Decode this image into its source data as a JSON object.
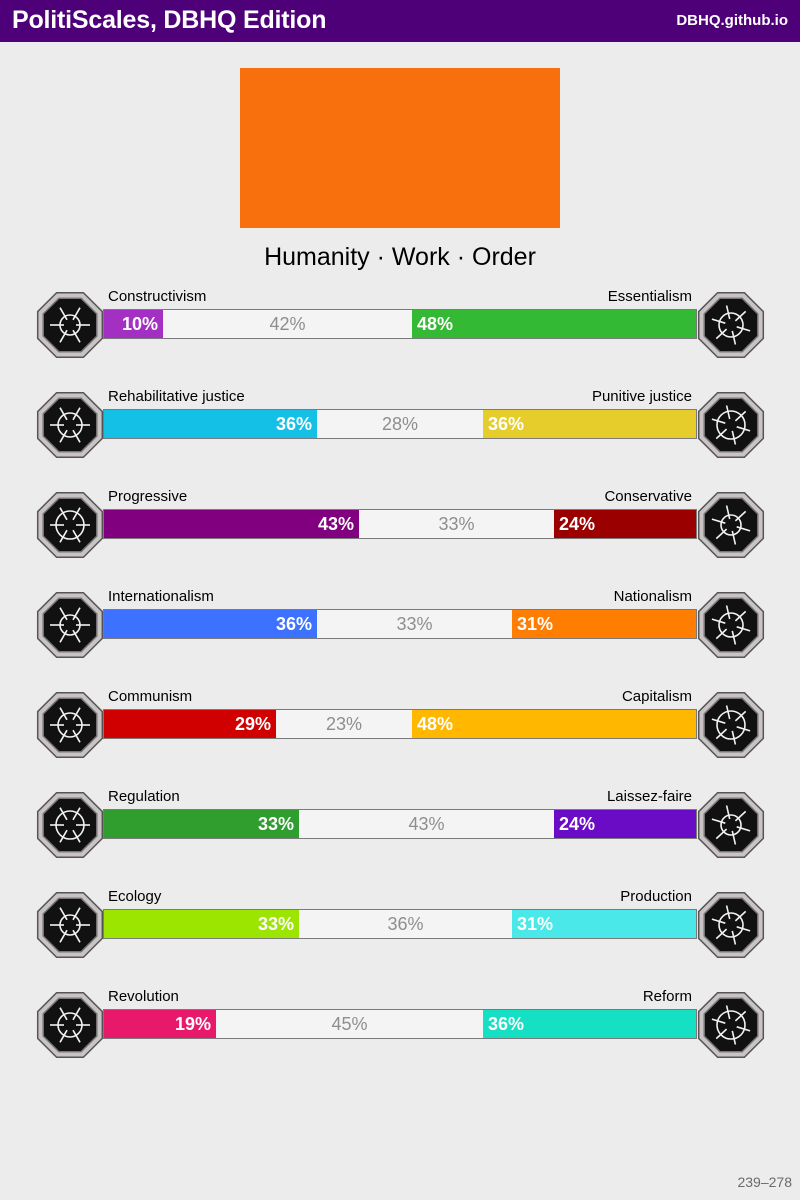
{
  "header": {
    "title": "PolitiScales, DBHQ Edition",
    "site": "DBHQ.github.io",
    "background": "#4e0079"
  },
  "flag": {
    "color": "#f8700d"
  },
  "summary": "Humanity · Work · Order",
  "axes": [
    {
      "left_label": "Constructivism",
      "right_label": "Essentialism",
      "left_pct": 10,
      "mid_pct": 42,
      "right_pct": 48,
      "left_text": "10%",
      "mid_text": "42%",
      "right_text": "48%",
      "left_color": "#a330c3",
      "right_color": "#33b933",
      "left_icon": "eye-icon",
      "right_icon": "flower-icon"
    },
    {
      "left_label": "Rehabilitative justice",
      "right_label": "Punitive justice",
      "left_pct": 36,
      "mid_pct": 28,
      "right_pct": 36,
      "left_text": "36%",
      "mid_text": "28%",
      "right_text": "36%",
      "left_color": "#14c0e6",
      "right_color": "#e6cd2b",
      "left_icon": "handshake-icon",
      "right_icon": "prison-bars-icon"
    },
    {
      "left_label": "Progressive",
      "right_label": "Conservative",
      "left_pct": 43,
      "mid_pct": 33,
      "right_pct": 24,
      "left_text": "43%",
      "mid_text": "33%",
      "right_text": "24%",
      "left_color": "#800080",
      "right_color": "#9a0000",
      "left_icon": "comet-icon",
      "right_icon": "pen-nib-icon"
    },
    {
      "left_label": "Internationalism",
      "right_label": "Nationalism",
      "left_pct": 36,
      "mid_pct": 33,
      "right_pct": 31,
      "left_text": "36%",
      "mid_text": "33%",
      "right_text": "31%",
      "left_color": "#3c72ff",
      "right_color": "#ff7d00",
      "left_icon": "globe-wreath-icon",
      "right_icon": "flag-icon"
    },
    {
      "left_label": "Communism",
      "right_label": "Capitalism",
      "left_pct": 29,
      "mid_pct": 23,
      "right_pct": 48,
      "left_text": "29%",
      "mid_text": "23%",
      "right_text": "48%",
      "left_color": "#d00000",
      "right_color": "#ffb700",
      "left_icon": "hammer-sickle-icon",
      "right_icon": "money-bag-icon"
    },
    {
      "left_label": "Regulation",
      "right_label": "Laissez-faire",
      "left_pct": 33,
      "mid_pct": 43,
      "right_pct": 24,
      "left_text": "33%",
      "mid_text": "43%",
      "right_text": "24%",
      "left_color": "#2f9e2f",
      "right_color": "#6a0bc6",
      "left_icon": "ruler-compass-icon",
      "right_icon": "butterflies-icon"
    },
    {
      "left_label": "Ecology",
      "right_label": "Production",
      "left_pct": 33,
      "mid_pct": 36,
      "right_pct": 31,
      "left_text": "33%",
      "mid_text": "36%",
      "right_text": "31%",
      "left_color": "#9be500",
      "right_color": "#4ae8e8",
      "left_icon": "sprout-icon",
      "right_icon": "gear-icon"
    },
    {
      "left_label": "Revolution",
      "right_label": "Reform",
      "left_pct": 19,
      "mid_pct": 45,
      "right_pct": 36,
      "left_text": "19%",
      "mid_text": "45%",
      "right_text": "36%",
      "left_color": "#e8186a",
      "right_color": "#15e0c4",
      "left_icon": "fist-icon",
      "right_icon": "parliament-icon"
    }
  ],
  "footer": "239–278"
}
